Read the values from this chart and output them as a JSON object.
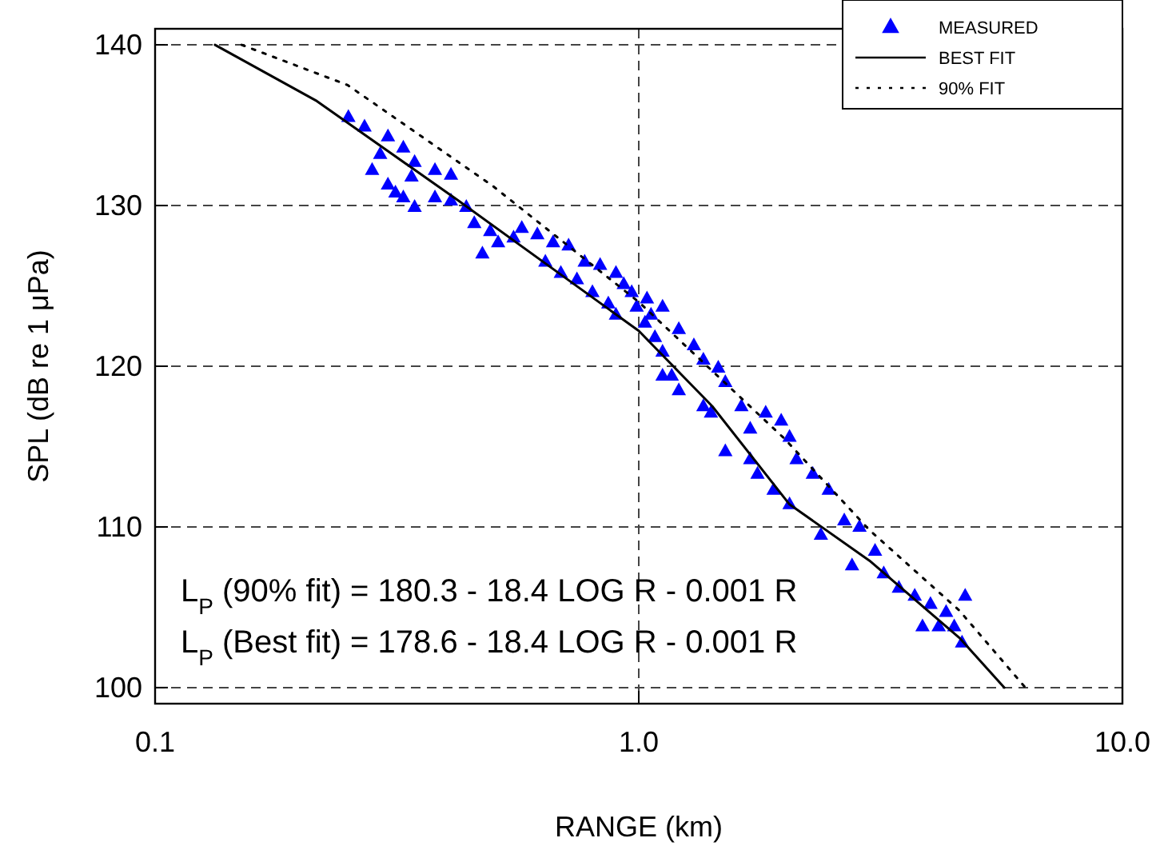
{
  "chart_data": {
    "type": "scatter",
    "xlabel": "RANGE (km)",
    "ylabel": "SPL (dB re 1 μPa)",
    "log": "x",
    "grid": true,
    "legend": "top right",
    "xlim": [
      0.1,
      10
    ],
    "xticks": [
      {
        "value": 0.1,
        "label": "0.1"
      },
      {
        "value": 1,
        "label": "1.0"
      },
      {
        "value": 10,
        "label": "10.0"
      }
    ],
    "ylim": [
      99,
      141
    ],
    "yticks": [
      100,
      110,
      120,
      130,
      140
    ],
    "annotations": [
      "L$_{P}$ (90% fit) = 180.3 - 18.4 LOG R - 0.001 R",
      "L$_{P}$ (Best fit) = 178.6 - 18.4 LOG R - 0.001 R"
    ],
    "series": [
      {
        "name": "MEASURED",
        "marker": "triangle",
        "color": "#0000ff",
        "x": [
          0.251,
          0.271,
          0.303,
          0.326,
          0.344,
          0.379,
          0.409,
          0.292,
          0.281,
          0.303,
          0.314,
          0.339,
          0.326,
          0.344,
          0.379,
          0.409,
          0.44,
          0.457,
          0.493,
          0.475,
          0.512,
          0.551,
          0.573,
          0.617,
          0.665,
          0.716,
          0.641,
          0.69,
          0.745,
          0.773,
          0.832,
          0.897,
          0.931,
          0.802,
          0.865,
          0.897,
          0.967,
          1.04,
          1.12,
          1.03,
          1.08,
          1.12,
          1.17,
          1.21,
          0.99,
          1.06,
          1.3,
          1.36,
          1.46,
          1.51,
          1.63,
          1.7,
          1.83,
          1.97,
          2.05,
          2.12,
          2.29,
          2.47,
          2.66,
          2.86,
          3.08,
          3.21,
          3.45,
          3.72,
          4.01,
          4.32,
          4.49,
          4.66,
          4.73,
          4.17,
          1.12,
          1.21,
          1.36,
          1.41,
          1.51,
          1.7,
          1.76,
          1.9,
          2.05,
          2.38,
          2.76,
          3.86
        ],
        "values": [
          135.5,
          134.9,
          134.3,
          133.6,
          132.7,
          132.2,
          131.9,
          133.2,
          132.2,
          131.3,
          130.8,
          131.8,
          130.5,
          129.9,
          130.5,
          130.3,
          129.9,
          128.9,
          128.4,
          127,
          127.7,
          128,
          128.6,
          128.2,
          127.7,
          127.5,
          126.5,
          125.8,
          125.4,
          126.5,
          126.3,
          125.8,
          125.1,
          124.6,
          123.9,
          123.2,
          124.6,
          124.2,
          123.7,
          122.7,
          121.8,
          120.9,
          119.4,
          122.3,
          123.7,
          123.2,
          121.3,
          120.4,
          119.9,
          119,
          117.5,
          116.1,
          117.1,
          116.6,
          115.6,
          114.2,
          113.3,
          112.3,
          110.4,
          110,
          108.5,
          107.1,
          106.2,
          105.7,
          105.2,
          104.7,
          103.8,
          102.8,
          105.7,
          103.8,
          119.4,
          118.5,
          117.5,
          117.1,
          114.7,
          114.2,
          113.3,
          112.3,
          111.4,
          109.5,
          107.6,
          103.8
        ]
      },
      {
        "name": "BEST FIT",
        "type": "line",
        "line_style": "solid",
        "color": "#000000",
        "x": [
          0.133,
          0.216,
          0.424,
          1.0,
          1.42,
          2.05,
          3.0,
          4.6,
          5.7
        ],
        "values": [
          140,
          136.5,
          130.3,
          122.2,
          117.5,
          111.4,
          107.9,
          103.1,
          100
        ]
      },
      {
        "name": "90% FIT",
        "type": "line",
        "line_style": "dotted",
        "color": "#000000",
        "x": [
          0.151,
          0.25,
          0.5,
          1,
          2,
          3,
          4.6,
          6.3
        ],
        "values": [
          140,
          137.5,
          131.2,
          124,
          115.5,
          109.8,
          104.8,
          100
        ]
      }
    ]
  }
}
